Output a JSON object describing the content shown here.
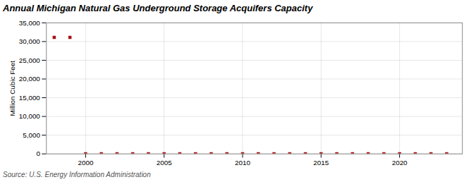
{
  "chart_data": {
    "type": "scatter",
    "title": "Annual Michigan Natural Gas Underground Storage Acquifers Capacity",
    "ylabel": "Million Cubic Feet",
    "caption": "Source: U.S. Energy Information Administration",
    "x": [
      1998,
      1999,
      2000,
      2001,
      2002,
      2003,
      2004,
      2005,
      2006,
      2007,
      2008,
      2009,
      2010,
      2011,
      2012,
      2013,
      2014,
      2015,
      2016,
      2017,
      2018,
      2019,
      2020,
      2021,
      2022,
      2023
    ],
    "values": [
      31100,
      31100,
      10,
      10,
      10,
      10,
      10,
      10,
      10,
      10,
      10,
      10,
      10,
      10,
      10,
      10,
      10,
      10,
      10,
      10,
      10,
      10,
      10,
      10,
      10,
      10
    ],
    "color": "#aa1111",
    "marker": "square",
    "xlim": [
      1997.5,
      2024
    ],
    "xticks": [
      2000,
      2005,
      2010,
      2015,
      2020
    ],
    "ylim": [
      0,
      35000
    ],
    "yticks": [
      0,
      {
        "value": 5000,
        "label": "5,000"
      },
      {
        "value": 10000,
        "label": "10,000"
      },
      {
        "value": 15000,
        "label": "15,000"
      },
      {
        "value": 20000,
        "label": "20,000"
      },
      {
        "value": 25000,
        "label": "25,000"
      },
      {
        "value": 30000,
        "label": "30,000"
      },
      {
        "value": 35000,
        "label": "35,000"
      }
    ],
    "grid": true
  }
}
